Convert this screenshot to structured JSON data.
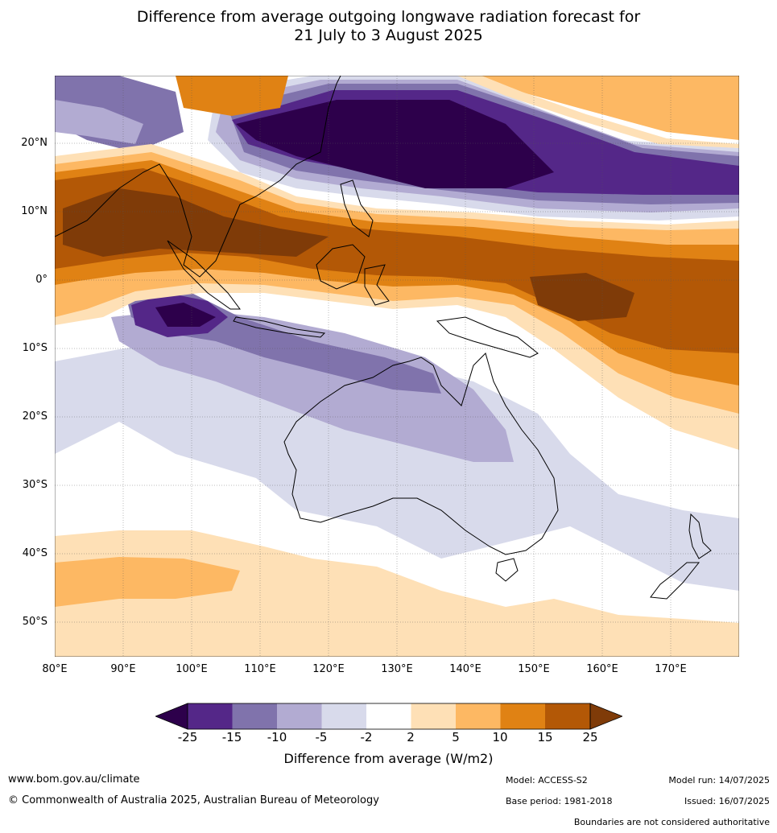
{
  "title_line1": "Difference from average outgoing longwave radiation forecast for",
  "title_line2": "21 July to 3 August 2025",
  "lat_labels": [
    "20°N",
    "10°N",
    "0°",
    "10°S",
    "20°S",
    "30°S",
    "40°S",
    "50°S"
  ],
  "lon_labels": [
    "80°E",
    "90°E",
    "100°E",
    "110°E",
    "120°E",
    "130°E",
    "140°E",
    "150°E",
    "160°E",
    "170°E"
  ],
  "colorbar": {
    "ticks": [
      "-25",
      "-15",
      "-10",
      "-5",
      "-2",
      "2",
      "5",
      "10",
      "15",
      "25"
    ],
    "colors": [
      "#2d004b",
      "#542788",
      "#8073ac",
      "#b2abd2",
      "#d8daeb",
      "#ffffff",
      "#fee0b6",
      "#fdb863",
      "#e08214",
      "#b35806",
      "#7f3b08"
    ],
    "label": "Difference from average (W/m2)"
  },
  "footer": {
    "url": "www.bom.gov.au/climate",
    "copyright": "© Commonwealth of Australia 2025, Australian Bureau of Meteorology",
    "model": "Model: ACCESS-S2",
    "base_period": "Base period: 1981-2018",
    "model_run": "Model run: 14/07/2025",
    "issued": "Issued: 16/07/2025",
    "boundaries": "Boundaries are not considered authoritative"
  }
}
